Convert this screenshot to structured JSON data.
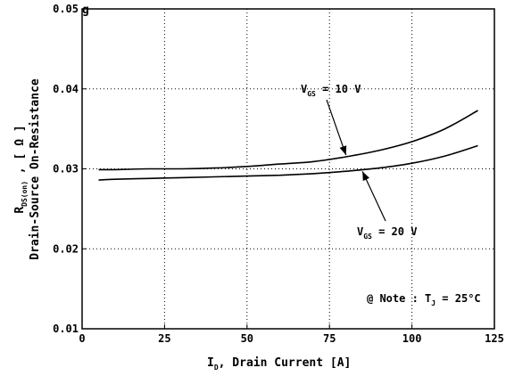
{
  "chart_data": {
    "type": "line",
    "title_fragment": "g",
    "xlabel": {
      "sym": "I",
      "sub": "D",
      "text": ", Drain Current  [A]"
    },
    "ylabel": {
      "line1_sym": "R",
      "line1_sub": "DS(on)",
      "line1_text": " , [ Ω ]",
      "line2": "Drain-Source On-Resistance"
    },
    "xlim": [
      0,
      125
    ],
    "ylim": [
      0.01,
      0.05
    ],
    "x_ticks": [
      0,
      25,
      50,
      75,
      100,
      125
    ],
    "x_tick_labels": [
      "0",
      "25",
      "50",
      "75",
      "100",
      "125"
    ],
    "y_ticks": [
      0.01,
      0.02,
      0.03,
      0.04,
      0.05
    ],
    "y_tick_labels": [
      "0.01",
      "0.02",
      "0.03",
      "0.04",
      "0.05"
    ],
    "grid": true,
    "series": [
      {
        "name": "V_GS = 10 V",
        "x": [
          5,
          10,
          20,
          30,
          40,
          50,
          60,
          70,
          80,
          90,
          100,
          110,
          120
        ],
        "values": [
          0.0299,
          0.0299,
          0.03,
          0.03,
          0.0301,
          0.0303,
          0.0306,
          0.0309,
          0.0315,
          0.0323,
          0.0334,
          0.035,
          0.0373
        ]
      },
      {
        "name": "V_GS = 20 V",
        "x": [
          5,
          10,
          20,
          30,
          40,
          50,
          60,
          70,
          80,
          90,
          100,
          110,
          120
        ],
        "values": [
          0.0286,
          0.0287,
          0.0288,
          0.0289,
          0.029,
          0.0291,
          0.0292,
          0.0294,
          0.0297,
          0.0301,
          0.0307,
          0.0316,
          0.0329
        ]
      }
    ],
    "annotations": {
      "vgs10": {
        "sym": "V",
        "sub": "GS",
        "text": " = 10 V",
        "points_to_x": 80
      },
      "vgs20": {
        "sym": "V",
        "sub": "GS",
        "text": " = 20 V",
        "points_to_x": 85
      },
      "note": {
        "prefix": "@ Note : T",
        "sub": "J",
        "text": " = 25°C"
      }
    }
  }
}
